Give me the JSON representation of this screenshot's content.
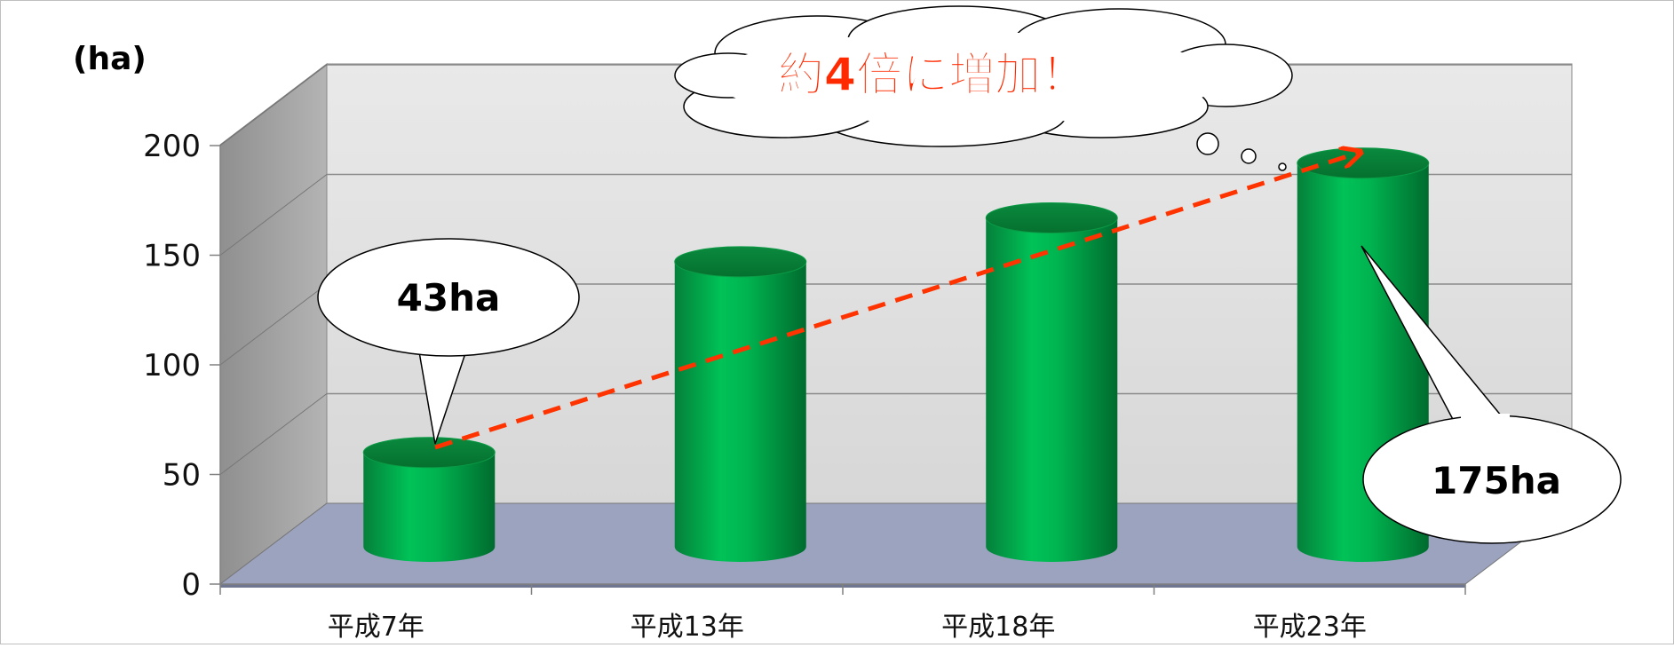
{
  "chart_data": {
    "type": "bar",
    "style": "3d-cylinder",
    "unit_label": "(ha)",
    "categories": [
      "平成7年",
      "平成13年",
      "平成18年",
      "平成23年"
    ],
    "values": [
      43,
      130,
      150,
      175
    ],
    "ylim": [
      0,
      200
    ],
    "yticks": [
      0,
      50,
      100,
      150,
      200
    ],
    "grid": true,
    "title": "",
    "xlabel": "",
    "ylabel": "",
    "annotations": {
      "first_value": "43ha",
      "last_value": "175ha",
      "trend_message": "約4倍に増加！"
    },
    "colors": {
      "bar": "#00b050",
      "bar_dark": "#007a36",
      "trend_arrow": "#ff3300",
      "message": "#ff2a00",
      "floor": "#9ba3bf",
      "wall": "#e3e3e3"
    }
  }
}
